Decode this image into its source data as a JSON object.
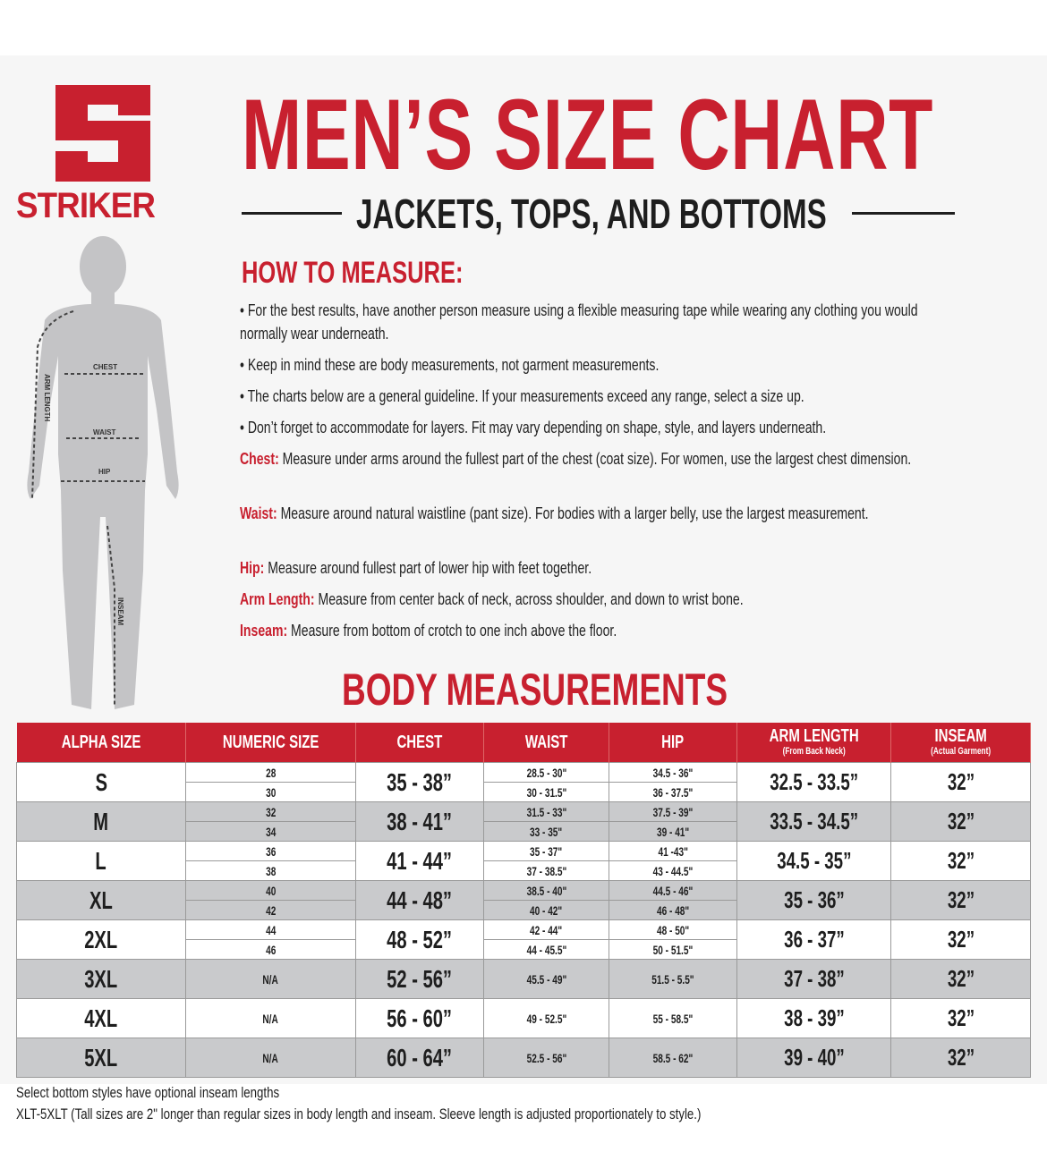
{
  "brand": {
    "name": "STRIKER",
    "color": "#c8202f"
  },
  "header": {
    "title": "MEN’S SIZE CHART",
    "subtitle": "JACKETS, TOPS, AND BOTTOMS"
  },
  "figure": {
    "labels": {
      "chest": "CHEST",
      "waist": "WAIST",
      "hip": "HIP",
      "arm_length": "ARM LENGTH",
      "inseam": "INSEAM"
    }
  },
  "how_to": {
    "heading": "HOW TO MEASURE:",
    "bullets": [
      "• For the best results, have another person measure using a flexible measuring tape while wearing any clothing you would normally wear underneath.",
      "• Keep in mind these are body measurements, not garment measurements.",
      "• The charts below are a general guideline. If your measurements exceed any range, select a size up.",
      "• Don’t forget to accommodate for layers. Fit may vary depending on shape, style, and layers underneath."
    ],
    "definitions": [
      {
        "label": "Chest:",
        "text": " Measure under arms around the fullest part of the chest (coat size).  For women, use the largest chest dimension."
      },
      {
        "label": "Waist:",
        "text": " Measure around natural waistline (pant size). For bodies with a larger belly, use the largest measurement."
      },
      {
        "label": "Hip:",
        "text": " Measure around fullest part of lower hip with feet together."
      },
      {
        "label": "Arm Length:",
        "text": " Measure from center back of neck, across shoulder, and down to wrist bone."
      },
      {
        "label": "Inseam:",
        "text": " Measure from bottom of crotch to one inch above the floor."
      }
    ]
  },
  "table": {
    "heading": "BODY MEASUREMENTS",
    "columns": [
      {
        "label": "ALPHA SIZE",
        "sub": ""
      },
      {
        "label": "NUMERIC SIZE",
        "sub": ""
      },
      {
        "label": "CHEST",
        "sub": ""
      },
      {
        "label": "WAIST",
        "sub": ""
      },
      {
        "label": "HIP",
        "sub": ""
      },
      {
        "label": "ARM LENGTH",
        "sub": "(From Back Neck)"
      },
      {
        "label": "INSEAM",
        "sub": "(Actual Garment)"
      }
    ],
    "rows": [
      {
        "alpha": "S",
        "numeric": [
          "28",
          "30"
        ],
        "chest": "35 - 38”",
        "waist": [
          "28.5 - 30\"",
          "30 - 31.5\""
        ],
        "hip": [
          "34.5 - 36\"",
          "36 - 37.5\""
        ],
        "arm": "32.5 - 33.5”",
        "inseam": "32”"
      },
      {
        "alpha": "M",
        "numeric": [
          "32",
          "34"
        ],
        "chest": "38 - 41”",
        "waist": [
          "31.5 - 33\"",
          "33 - 35\""
        ],
        "hip": [
          "37.5 - 39\"",
          "39 - 41\""
        ],
        "arm": "33.5 - 34.5”",
        "inseam": "32”"
      },
      {
        "alpha": "L",
        "numeric": [
          "36",
          "38"
        ],
        "chest": "41 - 44”",
        "waist": [
          "35 - 37\"",
          "37 - 38.5\""
        ],
        "hip": [
          "41 -43\"",
          "43 - 44.5\""
        ],
        "arm": "34.5 - 35”",
        "inseam": "32”"
      },
      {
        "alpha": "XL",
        "numeric": [
          "40",
          "42"
        ],
        "chest": "44 - 48”",
        "waist": [
          "38.5 - 40\"",
          "40 - 42\""
        ],
        "hip": [
          "44.5 - 46\"",
          "46 - 48\""
        ],
        "arm": "35 - 36”",
        "inseam": "32”"
      },
      {
        "alpha": "2XL",
        "numeric": [
          "44",
          "46"
        ],
        "chest": "48 - 52”",
        "waist": [
          "42 - 44\"",
          "44 - 45.5\""
        ],
        "hip": [
          "48 - 50\"",
          "50 - 51.5\""
        ],
        "arm": "36 - 37”",
        "inseam": "32”"
      },
      {
        "alpha": "3XL",
        "numeric": [
          "N/A"
        ],
        "chest": "52 - 56”",
        "waist": [
          "45.5 - 49\""
        ],
        "hip": [
          "51.5 - 5.5\""
        ],
        "arm": "37 - 38”",
        "inseam": "32”"
      },
      {
        "alpha": "4XL",
        "numeric": [
          "N/A"
        ],
        "chest": "56 - 60”",
        "waist": [
          "49 - 52.5\""
        ],
        "hip": [
          "55 - 58.5\""
        ],
        "arm": "38 - 39”",
        "inseam": "32”"
      },
      {
        "alpha": "5XL",
        "numeric": [
          "N/A"
        ],
        "chest": "60 - 64”",
        "waist": [
          "52.5 - 56\""
        ],
        "hip": [
          "58.5 - 62\""
        ],
        "arm": "39 - 40”",
        "inseam": "32”"
      }
    ],
    "row_shading": [
      "white",
      "gray",
      "white",
      "gray",
      "white",
      "gray",
      "white",
      "gray"
    ],
    "header_color": "#c8202f",
    "gray_color": "#c9cacc"
  },
  "notes": [
    "Select bottom styles have optional inseam lengths",
    "XLT-5XLT (Tall sizes are 2\" longer than regular sizes in body length and inseam. Sleeve length is adjusted proportionately to style.)"
  ]
}
